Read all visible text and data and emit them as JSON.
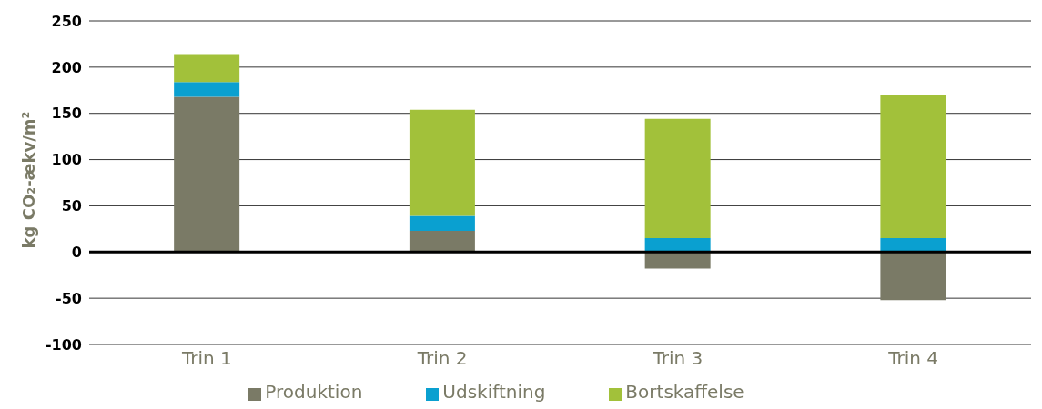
{
  "chart_data": {
    "type": "bar",
    "stacked": true,
    "ylabel": "kg CO₂-ækv/m²",
    "categories": [
      "Trin 1",
      "Trin 2",
      "Trin 3",
      "Trin 4"
    ],
    "series": [
      {
        "name": "Produktion",
        "color": "#7a7a66",
        "values": [
          168,
          23,
          -18,
          -52
        ]
      },
      {
        "name": "Udskiftning",
        "color": "#0aa0d0",
        "values": [
          16,
          16,
          15,
          15
        ]
      },
      {
        "name": "Bortskaffelse",
        "color": "#a2c13a",
        "values": [
          30,
          115,
          129,
          155
        ]
      }
    ],
    "ylim": [
      -100,
      250
    ],
    "yticks": [
      -100,
      -50,
      0,
      50,
      100,
      150,
      200,
      250
    ],
    "grid": "y",
    "legend": "bottom",
    "ref_lines": [
      {
        "axis": "y",
        "value": 0,
        "color": "#000000"
      }
    ]
  }
}
